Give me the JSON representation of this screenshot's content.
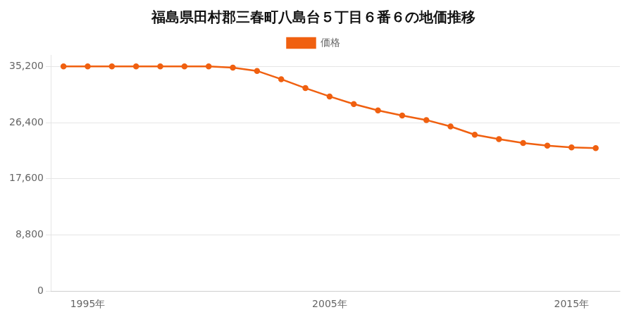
{
  "chart_data": {
    "type": "line",
    "title": "福島県田村郡三春町八島台５丁目６番６の地価推移",
    "x": [
      1994,
      1995,
      1996,
      1997,
      1998,
      1999,
      2000,
      2001,
      2002,
      2003,
      2004,
      2005,
      2006,
      2007,
      2008,
      2009,
      2010,
      2011,
      2012,
      2013,
      2014,
      2015,
      2016
    ],
    "series": [
      {
        "name": "価格",
        "color": "#f06010",
        "marker": "circle",
        "values": [
          35200,
          35200,
          35200,
          35200,
          35200,
          35200,
          35200,
          35000,
          34500,
          33200,
          31800,
          30500,
          29300,
          28300,
          27500,
          26800,
          25800,
          24500,
          23800,
          23200,
          22800,
          22500,
          22400
        ]
      }
    ],
    "xlim": [
      1993.5,
      2017
    ],
    "xticks": [
      {
        "value": 1995,
        "label": "1995年"
      },
      {
        "value": 2005,
        "label": "2005年"
      },
      {
        "value": 2015,
        "label": "2015年"
      }
    ],
    "ylim": [
      0,
      37000
    ],
    "yticks": [
      0,
      {
        "value": 8800,
        "label": "8,800"
      },
      {
        "value": 17600,
        "label": "17,600"
      },
      {
        "value": 26400,
        "label": "26,400"
      },
      {
        "value": 35200,
        "label": "35,200"
      }
    ],
    "grid": "y",
    "legend": "top"
  }
}
